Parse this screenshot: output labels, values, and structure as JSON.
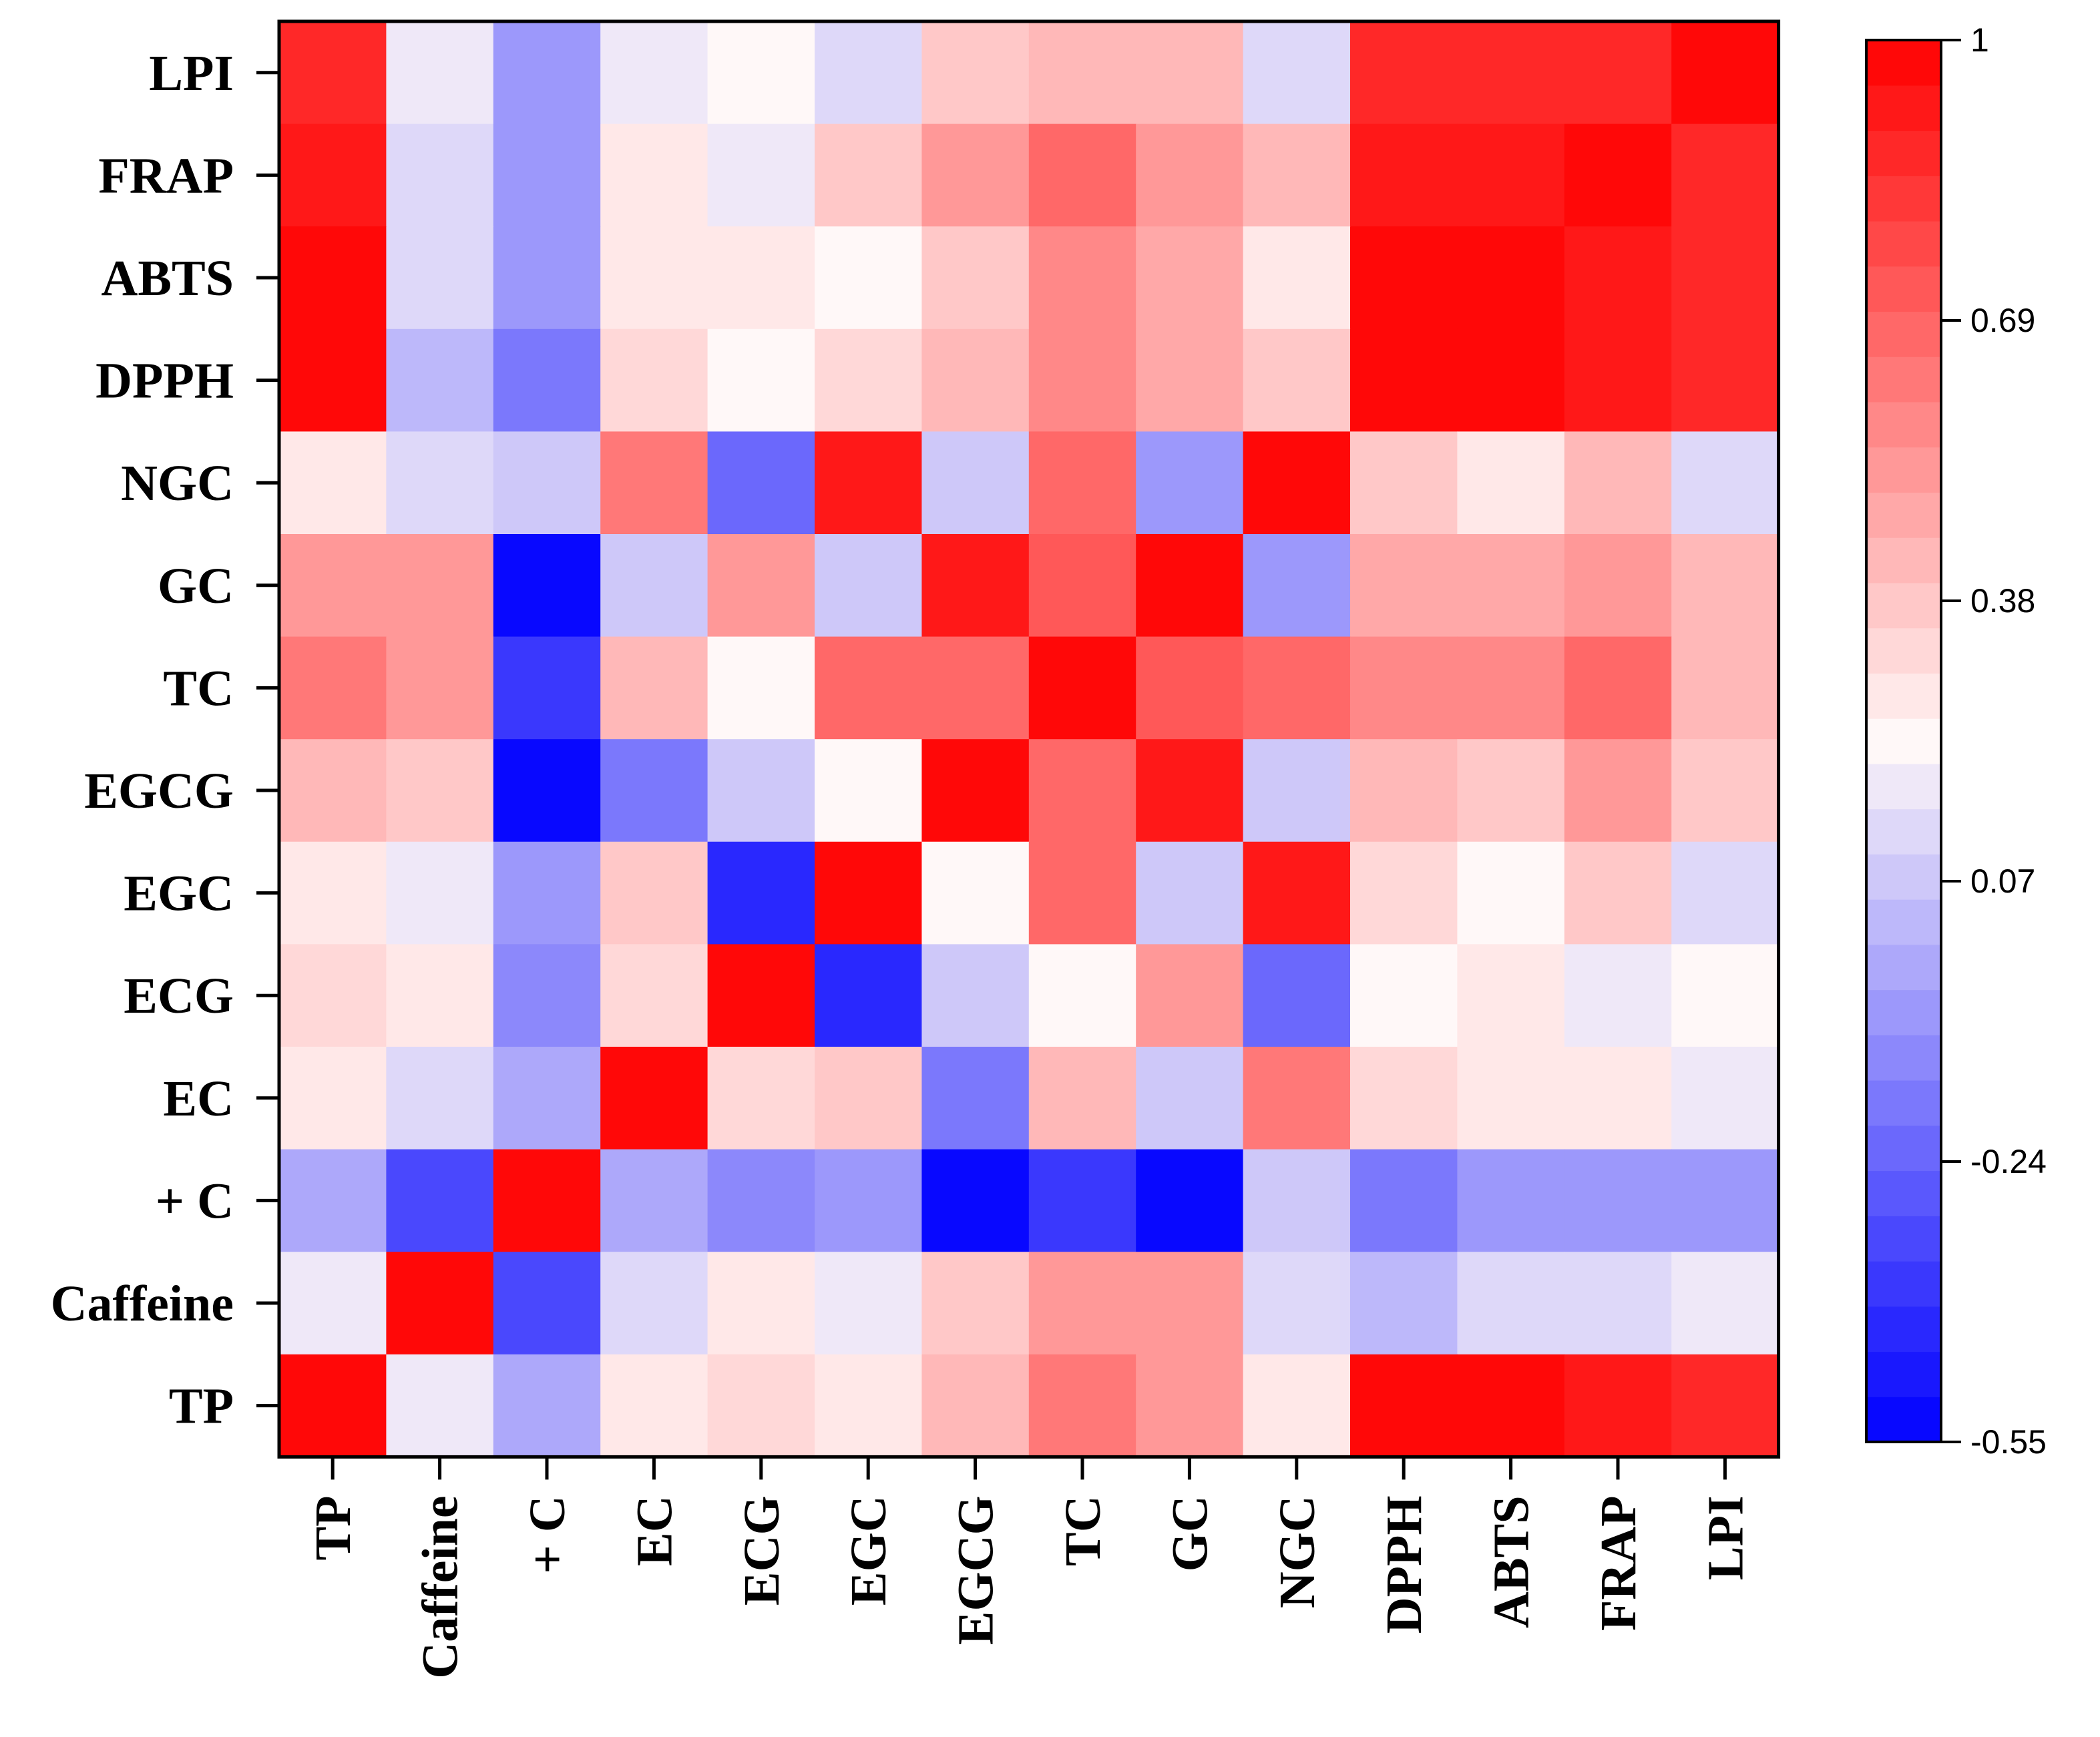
{
  "chart_data": {
    "type": "heatmap",
    "title": "",
    "variables": [
      "TP",
      "Caffeine",
      "+ C",
      "EC",
      "ECG",
      "EGC",
      "EGCG",
      "TC",
      "GC",
      "NGC",
      "DPPH",
      "ABTS",
      "FRAP",
      "LPI"
    ],
    "x_categories": [
      "TP",
      "Caffeine",
      "+ C",
      "EC",
      "ECG",
      "EGC",
      "EGCG",
      "TC",
      "GC",
      "NGC",
      "DPPH",
      "ABTS",
      "FRAP",
      "LPI"
    ],
    "y_categories_top_to_bottom": [
      "LPI",
      "FRAP",
      "ABTS",
      "DPPH",
      "NGC",
      "GC",
      "TC",
      "EGCG",
      "EGC",
      "ECG",
      "EC",
      "+ C",
      "Caffeine",
      "TP"
    ],
    "matrix": [
      [
        1.0,
        0.18,
        -0.05,
        0.28,
        0.33,
        0.27,
        0.41,
        0.62,
        0.52,
        0.27,
        0.96,
        0.96,
        0.92,
        0.88
      ],
      [
        0.18,
        1.0,
        -0.35,
        0.12,
        0.26,
        0.17,
        0.39,
        0.51,
        0.5,
        0.13,
        0.04,
        0.1,
        0.13,
        0.18
      ],
      [
        -0.05,
        -0.35,
        1.0,
        -0.03,
        -0.12,
        -0.06,
        -0.52,
        -0.38,
        -0.55,
        0.09,
        -0.16,
        -0.06,
        -0.06,
        -0.06
      ],
      [
        0.28,
        0.12,
        -0.03,
        1.0,
        0.34,
        0.37,
        -0.16,
        0.41,
        0.05,
        0.64,
        0.34,
        0.29,
        0.29,
        0.19
      ],
      [
        0.33,
        0.26,
        -0.12,
        0.34,
        1.0,
        -0.45,
        0.05,
        0.2,
        0.52,
        -0.25,
        0.22,
        0.29,
        0.18,
        0.24
      ],
      [
        0.27,
        0.17,
        -0.06,
        0.37,
        -0.45,
        1.0,
        0.24,
        0.67,
        0.06,
        0.94,
        0.33,
        0.24,
        0.39,
        0.1
      ],
      [
        0.41,
        0.39,
        -0.52,
        -0.16,
        0.05,
        0.24,
        1.0,
        0.67,
        0.9,
        0.07,
        0.43,
        0.38,
        0.53,
        0.37
      ],
      [
        0.62,
        0.51,
        -0.38,
        0.41,
        0.2,
        0.67,
        0.67,
        1.0,
        0.72,
        0.65,
        0.59,
        0.59,
        0.66,
        0.42
      ],
      [
        0.52,
        0.5,
        -0.55,
        0.05,
        0.52,
        0.06,
        0.9,
        0.72,
        1.0,
        -0.06,
        0.48,
        0.45,
        0.53,
        0.41
      ],
      [
        0.27,
        0.13,
        0.09,
        0.64,
        -0.25,
        0.94,
        0.07,
        0.65,
        -0.06,
        1.0,
        0.37,
        0.29,
        0.41,
        0.13
      ],
      [
        0.96,
        0.04,
        -0.16,
        0.34,
        0.22,
        0.33,
        0.43,
        0.59,
        0.48,
        0.37,
        1.0,
        1.0,
        0.92,
        0.86
      ],
      [
        0.96,
        0.1,
        -0.06,
        0.29,
        0.29,
        0.24,
        0.38,
        0.59,
        0.45,
        0.29,
        1.0,
        1.0,
        0.92,
        0.86
      ],
      [
        0.92,
        0.13,
        -0.06,
        0.29,
        0.18,
        0.39,
        0.53,
        0.66,
        0.53,
        0.41,
        0.92,
        0.92,
        1.0,
        0.86
      ],
      [
        0.88,
        0.18,
        -0.06,
        0.19,
        0.24,
        0.1,
        0.37,
        0.42,
        0.41,
        0.13,
        0.86,
        0.86,
        0.86,
        1.0
      ]
    ],
    "colorbar": {
      "min": -0.55,
      "max": 1,
      "ticks": [
        1,
        0.69,
        0.38,
        0.07,
        -0.24,
        -0.55
      ],
      "tick_labels": [
        "1",
        "0.69",
        "0.38",
        "0.07",
        "-0.24",
        "-0.55"
      ],
      "low_color": "#0000ff",
      "mid_color": "#fff8f8",
      "high_color": "#ff0000",
      "mid_value": 0.225,
      "levels": 31
    },
    "legend_position": "right",
    "grid": false
  }
}
